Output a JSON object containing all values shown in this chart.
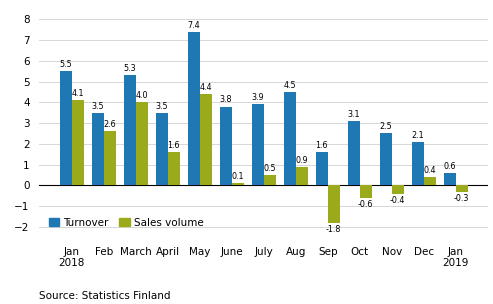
{
  "categories": [
    "Jan\n2018",
    "Feb",
    "March",
    "April",
    "May",
    "June",
    "July",
    "Aug",
    "Sep",
    "Oct",
    "Nov",
    "Dec",
    "Jan\n2019"
  ],
  "turnover": [
    5.5,
    3.5,
    5.3,
    3.5,
    7.4,
    3.8,
    3.9,
    4.5,
    1.6,
    3.1,
    2.5,
    2.1,
    0.6
  ],
  "sales_volume": [
    4.1,
    2.6,
    4.0,
    1.6,
    4.4,
    0.1,
    0.5,
    0.9,
    -1.8,
    -0.6,
    -0.4,
    0.4,
    -0.3
  ],
  "turnover_color": "#1f77b4",
  "sales_volume_color": "#9aaa1a",
  "ylim": [
    -2.5,
    8.5
  ],
  "yticks": [
    -2,
    -1,
    0,
    1,
    2,
    3,
    4,
    5,
    6,
    7,
    8
  ],
  "source_text": "Source: Statistics Finland",
  "legend_turnover": "Turnover",
  "legend_sales_volume": "Sales volume",
  "bar_width": 0.37,
  "label_fontsize": 5.8,
  "axis_fontsize": 7.5,
  "legend_fontsize": 7.5,
  "source_fontsize": 7.5
}
